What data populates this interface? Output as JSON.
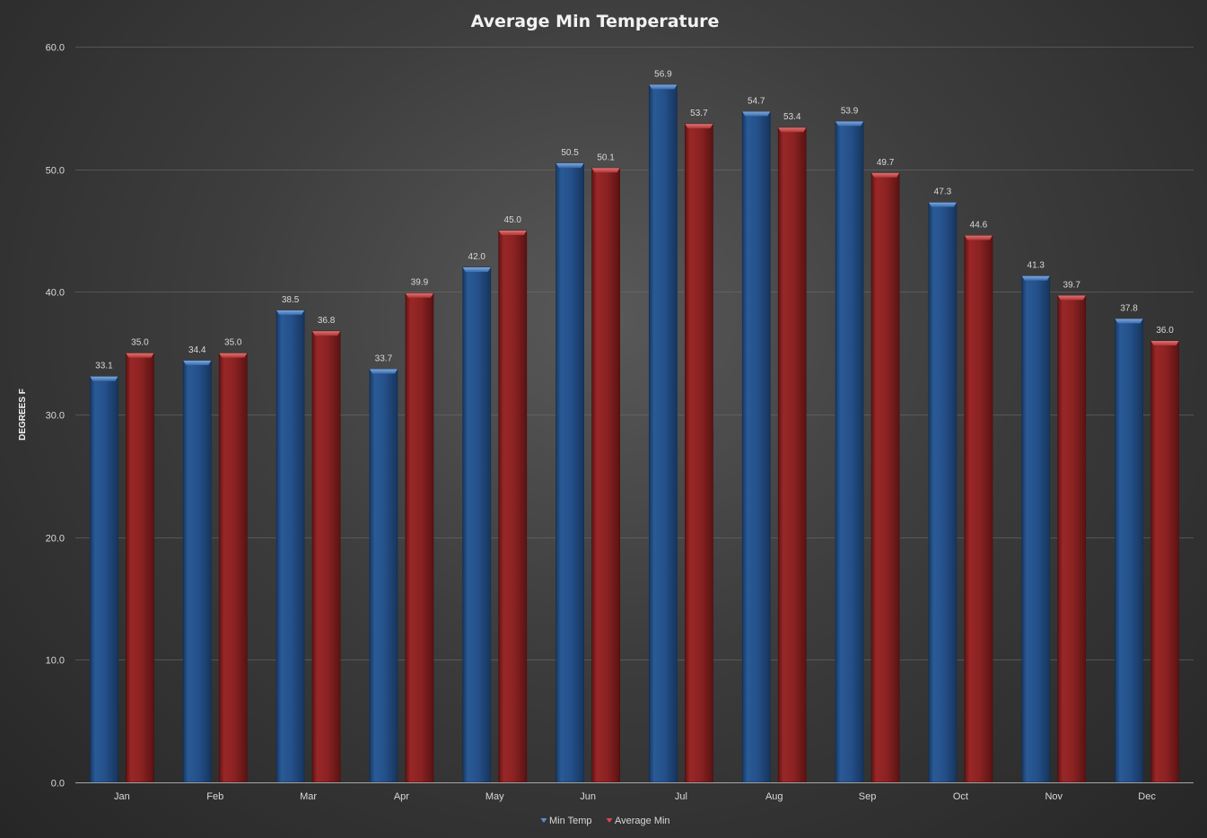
{
  "chart_data": {
    "type": "bar",
    "title": "Average Min Temperature",
    "xlabel": "",
    "ylabel": "DEGREES F",
    "ylim": [
      0,
      60
    ],
    "yticks": [
      "0.0",
      "10.0",
      "20.0",
      "30.0",
      "40.0",
      "50.0",
      "60.0"
    ],
    "grid": true,
    "legend_position": "bottom",
    "categories": [
      "Jan",
      "Feb",
      "Mar",
      "Apr",
      "May",
      "Jun",
      "Jul",
      "Aug",
      "Sep",
      "Oct",
      "Nov",
      "Dec"
    ],
    "series": [
      {
        "name": "Min Temp",
        "color": "#2a5a9a",
        "values": [
          33.1,
          34.4,
          38.5,
          33.7,
          42.0,
          50.5,
          56.9,
          54.7,
          53.9,
          47.3,
          41.3,
          37.8
        ],
        "labels": [
          "33.1",
          "34.4",
          "38.5",
          "33.7",
          "42.0",
          "50.5",
          "56.9",
          "54.7",
          "53.9",
          "47.3",
          "41.3",
          "37.8"
        ]
      },
      {
        "name": "Average Min",
        "color": "#9a2525",
        "values": [
          35.0,
          35.0,
          36.8,
          39.9,
          45.0,
          50.1,
          53.7,
          53.4,
          49.7,
          44.6,
          39.7,
          36.0
        ],
        "labels": [
          "35.0",
          "35.0",
          "36.8",
          "39.9",
          "45.0",
          "50.1",
          "53.7",
          "53.4",
          "49.7",
          "44.6",
          "39.7",
          "36.0"
        ]
      }
    ]
  }
}
